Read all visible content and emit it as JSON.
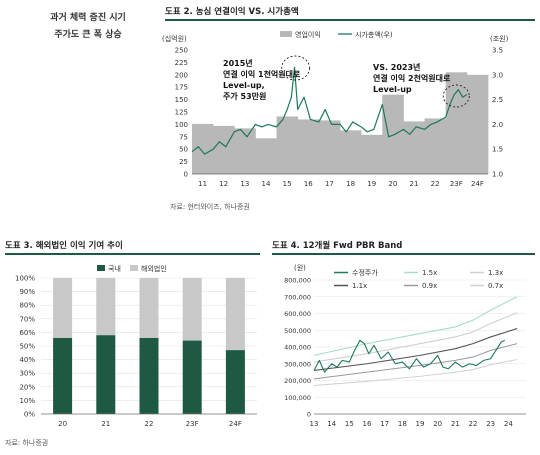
{
  "side_note": {
    "line1": "과거 체력 증진 시기",
    "line2": "주가도 큰 폭 상승"
  },
  "colors": {
    "green": "#1e7a55",
    "bar": "#b8b8b8",
    "gray_dark": "#444444",
    "gray_light": "#c8c8c8",
    "accent": "#1e5a43"
  },
  "figures": [
    {
      "title": "도표 2. 농심 연결이익 VS. 시가총액",
      "source": "자료: 현터와이즈, 하나증권"
    },
    {
      "title": "도표 3. 해외법인 이익 기여 추이",
      "source": "자료: 하나증권"
    },
    {
      "title": "도표 4. 12개월 Fwd PBR Band",
      "source": ""
    }
  ],
  "chart_data": [
    {
      "type": "bar",
      "title": "도표 2. 농심 연결이익 VS. 시가총액",
      "left_unit": "(십억원)",
      "right_unit": "(조원)",
      "ylim_left": [
        0,
        250
      ],
      "left_ticks": [
        "0",
        "25",
        "50",
        "75",
        "100",
        "125",
        "150",
        "175",
        "200",
        "225",
        "250"
      ],
      "ylim_right": [
        1.0,
        3.5
      ],
      "right_ticks": [
        "1.0",
        "1.5",
        "2.0",
        "2.5",
        "3.0",
        "3.5"
      ],
      "x_ticks": [
        "11",
        "12",
        "13",
        "14",
        "15",
        "16",
        "17",
        "18",
        "19",
        "20",
        "21",
        "22",
        "23F",
        "24F"
      ],
      "legend": [
        "영업이익",
        "시가총액(우)"
      ],
      "bar_series": {
        "name": "영업이익",
        "categories": [
          "11",
          "12",
          "13",
          "14",
          "15",
          "16",
          "17",
          "18",
          "19",
          "20",
          "21",
          "22",
          "23F",
          "24F"
        ],
        "values": [
          101,
          97,
          92,
          72,
          116,
          110,
          108,
          88,
          79,
          160,
          106,
          112,
          205,
          200
        ]
      },
      "line_series": {
        "name": "시가총액(우)",
        "x": [
          11.0,
          11.3,
          11.6,
          12.0,
          12.3,
          12.6,
          13.0,
          13.3,
          13.6,
          14.0,
          14.3,
          14.6,
          15.0,
          15.3,
          15.5,
          15.7,
          15.85,
          16.0,
          16.3,
          16.6,
          17.0,
          17.3,
          17.6,
          18.0,
          18.3,
          18.6,
          19.0,
          19.3,
          19.6,
          20.0,
          20.3,
          20.6,
          21.0,
          21.3,
          21.6,
          22.0,
          22.3,
          22.6,
          23.0,
          23.2,
          23.4,
          23.6,
          23.8,
          24.0
        ],
        "y": [
          1.45,
          1.55,
          1.4,
          1.5,
          1.65,
          1.55,
          1.85,
          1.9,
          1.75,
          2.0,
          1.95,
          2.0,
          1.95,
          2.1,
          2.3,
          2.55,
          3.15,
          2.3,
          2.55,
          2.1,
          2.05,
          2.3,
          2.0,
          2.0,
          1.85,
          2.05,
          1.95,
          1.85,
          1.9,
          2.4,
          1.75,
          1.8,
          1.9,
          1.8,
          1.95,
          1.9,
          2.0,
          2.05,
          2.15,
          2.4,
          2.6,
          2.7,
          2.55,
          2.6
        ]
      },
      "annotations": [
        {
          "lines": [
            "2015년",
            "연결 이익 1천억원대로",
            "Level-up,",
            "주가 53만원"
          ]
        },
        {
          "lines": [
            "VS. 2023년",
            "연결 이익 2천억원대로",
            "Level-up"
          ]
        }
      ]
    },
    {
      "type": "bar",
      "title": "도표 3. 해외법인 이익 기여 추이",
      "categories": [
        "20",
        "21",
        "22",
        "23F",
        "24F"
      ],
      "series": [
        {
          "name": "국내",
          "values": [
            56,
            58,
            56,
            54,
            47
          ]
        },
        {
          "name": "해외법인",
          "values": [
            44,
            42,
            44,
            46,
            53
          ]
        }
      ],
      "ylim": [
        0,
        100
      ],
      "y_ticks": [
        "0%",
        "10%",
        "20%",
        "30%",
        "40%",
        "50%",
        "60%",
        "70%",
        "80%",
        "90%",
        "100%"
      ]
    },
    {
      "type": "line",
      "title": "도표 4. 12개월 Fwd PBR Band",
      "unit": "(원)",
      "ylim": [
        0,
        800000
      ],
      "y_ticks": [
        "0",
        "100,000",
        "200,000",
        "300,000",
        "400,000",
        "500,000",
        "600,000",
        "700,000",
        "800,000"
      ],
      "x_ticks": [
        "13",
        "14",
        "15",
        "16",
        "17",
        "18",
        "19",
        "20",
        "21",
        "22",
        "23",
        "24"
      ],
      "series": [
        {
          "name": "수정주가",
          "x": [
            13.0,
            13.3,
            13.6,
            14.0,
            14.3,
            14.6,
            15.0,
            15.3,
            15.6,
            15.85,
            16.1,
            16.4,
            16.8,
            17.2,
            17.6,
            18.0,
            18.4,
            18.8,
            19.2,
            19.6,
            20.0,
            20.3,
            20.6,
            21.0,
            21.4,
            21.8,
            22.2,
            22.6,
            23.0,
            23.3,
            23.6,
            23.8
          ],
          "y": [
            260000,
            320000,
            250000,
            300000,
            280000,
            320000,
            310000,
            380000,
            440000,
            420000,
            360000,
            410000,
            330000,
            370000,
            300000,
            310000,
            270000,
            330000,
            280000,
            300000,
            350000,
            280000,
            270000,
            310000,
            280000,
            300000,
            290000,
            320000,
            330000,
            380000,
            430000,
            440000
          ]
        },
        {
          "name": "1.5x",
          "x": [
            13,
            16,
            19,
            21,
            22,
            23,
            24.5
          ],
          "y": [
            350000,
            420000,
            480000,
            520000,
            560000,
            620000,
            700000
          ]
        },
        {
          "name": "1.3x",
          "x": [
            13,
            16,
            19,
            21,
            22,
            23,
            24.5
          ],
          "y": [
            310000,
            360000,
            420000,
            460000,
            490000,
            540000,
            605000
          ]
        },
        {
          "name": "1.1x",
          "x": [
            13,
            16,
            19,
            21,
            22,
            23,
            24.5
          ],
          "y": [
            260000,
            300000,
            350000,
            390000,
            420000,
            460000,
            510000
          ]
        },
        {
          "name": "0.9x",
          "x": [
            13,
            16,
            19,
            21,
            22,
            23,
            24.5
          ],
          "y": [
            210000,
            250000,
            290000,
            320000,
            340000,
            380000,
            420000
          ]
        },
        {
          "name": "0.7x",
          "x": [
            13,
            16,
            19,
            21,
            22,
            23,
            24.5
          ],
          "y": [
            170000,
            195000,
            225000,
            250000,
            265000,
            295000,
            325000
          ]
        }
      ]
    }
  ]
}
